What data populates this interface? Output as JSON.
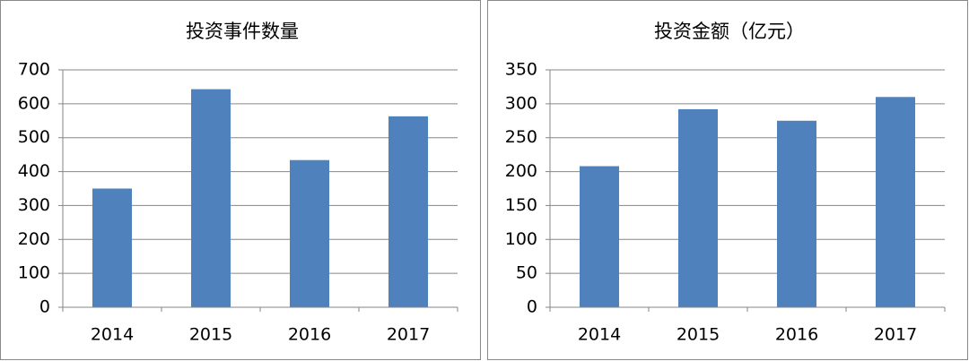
{
  "chart_data": [
    {
      "type": "bar",
      "title": "投资事件数量",
      "categories": [
        "2014",
        "2015",
        "2016",
        "2017"
      ],
      "values": [
        350,
        643,
        434,
        563
      ],
      "color": "#4f81bd",
      "ylim": [
        0,
        700
      ],
      "yticks": [
        0,
        100,
        200,
        300,
        400,
        500,
        600,
        700
      ],
      "grid": true
    },
    {
      "type": "bar",
      "title": "投资金额（亿元）",
      "categories": [
        "2014",
        "2015",
        "2016",
        "2017"
      ],
      "values": [
        208,
        292,
        275,
        310
      ],
      "color": "#4f81bd",
      "ylim": [
        0,
        350
      ],
      "yticks": [
        0,
        50,
        100,
        150,
        200,
        250,
        300,
        350
      ],
      "grid": true
    }
  ]
}
